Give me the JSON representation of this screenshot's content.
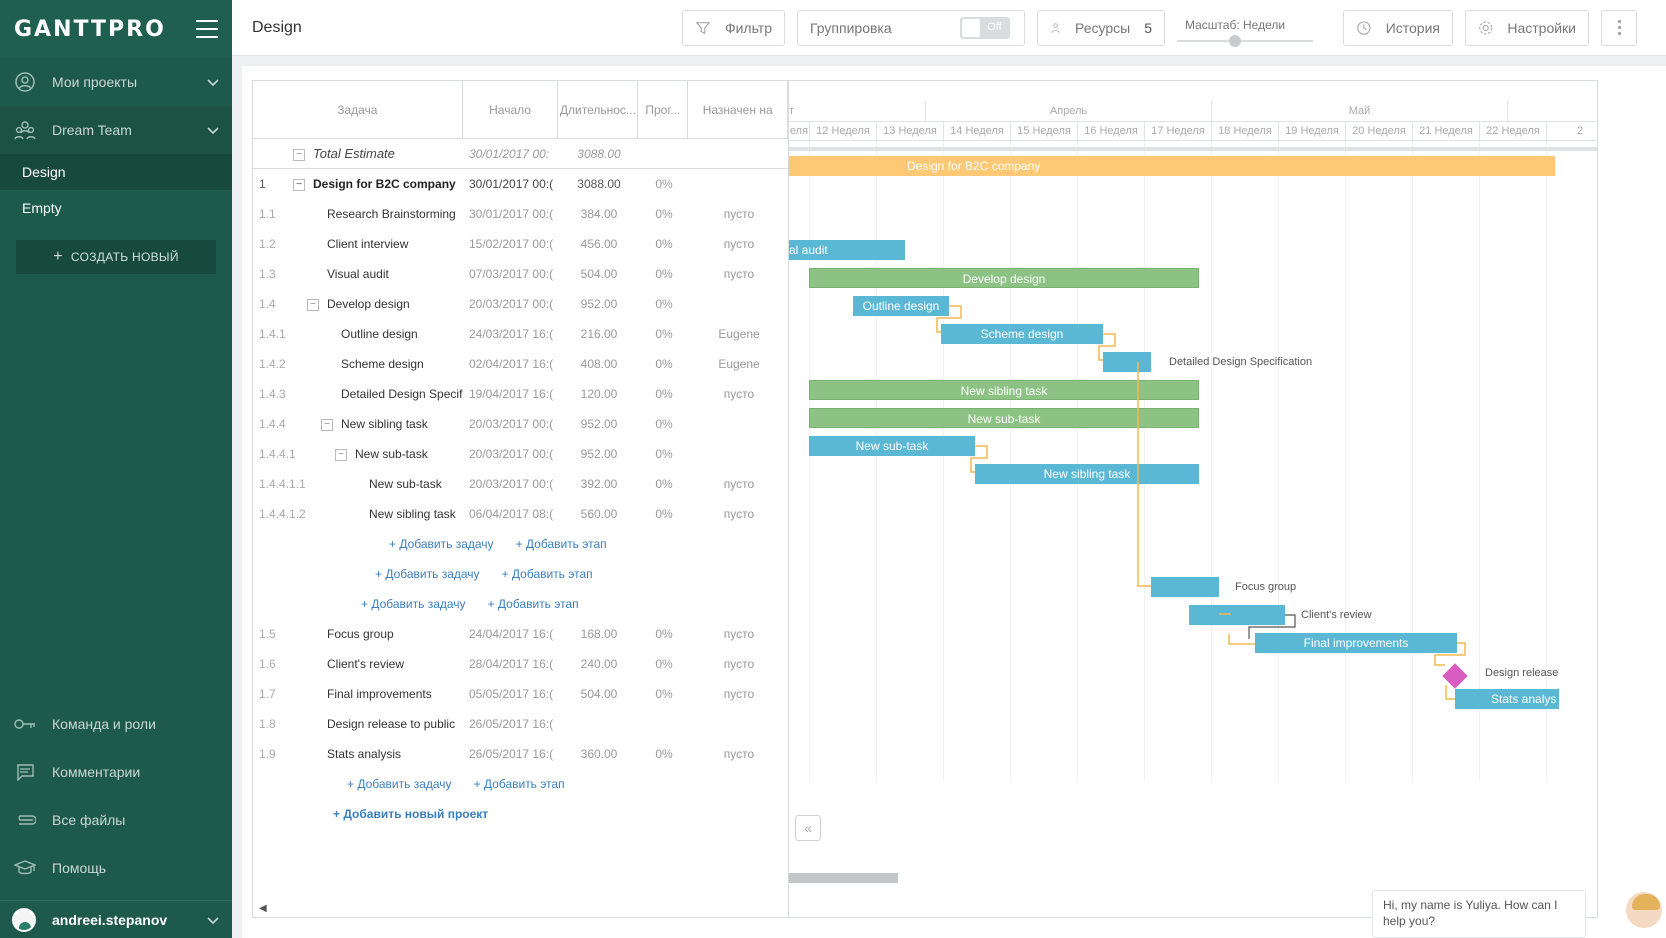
{
  "app": {
    "logo": "GANTTPRO",
    "page_title": "Design"
  },
  "sidebar": {
    "my_projects": "Мои проекты",
    "team": "Dream Team",
    "projects": [
      "Design",
      "Empty"
    ],
    "create_new": "СОЗДАТЬ НОВЫЙ",
    "bottom": [
      "Команда и роли",
      "Комментарии",
      "Все файлы",
      "Помощь"
    ],
    "user": "andreei.stepanov"
  },
  "toolbar": {
    "filter": "Фильтр",
    "grouping": "Группировка",
    "grouping_state": "Off",
    "resources": "Ресурсы",
    "resources_count": "5",
    "zoom_label": "Масштаб: Недели",
    "history": "История",
    "settings": "Настройки"
  },
  "grid": {
    "headers": [
      "Задача",
      "Начало",
      "Длительнос...",
      "Прог...",
      "Назначен на"
    ],
    "total": {
      "name": "Total Estimate",
      "start": "30/01/2017 00:",
      "duration": "3088.00"
    },
    "rows": [
      {
        "num": "1",
        "name": "Design for B2C company",
        "start": "30/01/2017 00:(",
        "duration": "3088.00",
        "progress": "0%",
        "assigned": "",
        "indent": 0,
        "collapse": true,
        "project": true
      },
      {
        "num": "1.1",
        "name": "Research Brainstorming",
        "start": "30/01/2017 00:(",
        "duration": "384.00",
        "progress": "0%",
        "assigned": "пусто",
        "indent": 1
      },
      {
        "num": "1.2",
        "name": "Client interview",
        "start": "15/02/2017 00:(",
        "duration": "456.00",
        "progress": "0%",
        "assigned": "пусто",
        "indent": 1
      },
      {
        "num": "1.3",
        "name": "Visual audit",
        "start": "07/03/2017 00:(",
        "duration": "504.00",
        "progress": "0%",
        "assigned": "пусто",
        "indent": 1
      },
      {
        "num": "1.4",
        "name": "Develop design",
        "start": "20/03/2017 00:(",
        "duration": "952.00",
        "progress": "0%",
        "assigned": "",
        "indent": 1,
        "collapse": true
      },
      {
        "num": "1.4.1",
        "name": "Outline design",
        "start": "24/03/2017 16:(",
        "duration": "216.00",
        "progress": "0%",
        "assigned": "Eugene",
        "indent": 2
      },
      {
        "num": "1.4.2",
        "name": "Scheme design",
        "start": "02/04/2017 16:(",
        "duration": "408.00",
        "progress": "0%",
        "assigned": "Eugene",
        "indent": 2
      },
      {
        "num": "1.4.3",
        "name": "Detailed Design Specification",
        "start": "19/04/2017 16:(",
        "duration": "120.00",
        "progress": "0%",
        "assigned": "пусто",
        "indent": 2
      },
      {
        "num": "1.4.4",
        "name": "New sibling task",
        "start": "20/03/2017 00:(",
        "duration": "952.00",
        "progress": "0%",
        "assigned": "",
        "indent": 2,
        "collapse": true
      },
      {
        "num": "1.4.4.1",
        "name": "New sub-task",
        "start": "20/03/2017 00:(",
        "duration": "952.00",
        "progress": "0%",
        "assigned": "",
        "indent": 3,
        "collapse": true
      },
      {
        "num": "1.4.4.1.1",
        "name": "New sub-task",
        "start": "20/03/2017 00:(",
        "duration": "392.00",
        "progress": "0%",
        "assigned": "пусто",
        "indent": 4
      },
      {
        "num": "1.4.4.1.2",
        "name": "New sibling task",
        "start": "06/04/2017 08:(",
        "duration": "560.00",
        "progress": "0%",
        "assigned": "пусто",
        "indent": 4
      }
    ],
    "rows_after": [
      {
        "num": "1.5",
        "name": "Focus group",
        "start": "24/04/2017 16:(",
        "duration": "168.00",
        "progress": "0%",
        "assigned": "пусто",
        "indent": 1
      },
      {
        "num": "1.6",
        "name": "Client's review",
        "start": "28/04/2017 16:(",
        "duration": "240.00",
        "progress": "0%",
        "assigned": "пусто",
        "indent": 1
      },
      {
        "num": "1.7",
        "name": "Final improvements",
        "start": "05/05/2017 16:(",
        "duration": "504.00",
        "progress": "0%",
        "assigned": "пусто",
        "indent": 1
      },
      {
        "num": "1.8",
        "name": "Design release to public",
        "start": "26/05/2017 16:(",
        "duration": "",
        "progress": "",
        "assigned": "",
        "indent": 1
      },
      {
        "num": "1.9",
        "name": "Stats analysis",
        "start": "26/05/2017 16:(",
        "duration": "360.00",
        "progress": "0%",
        "assigned": "пусто",
        "indent": 1
      }
    ],
    "add_task": "+ Добавить задачу",
    "add_stage": "+ Добавить этап",
    "add_project": "+ Добавить новый проект"
  },
  "gantt": {
    "months": [
      "т",
      "Апрель",
      "Май"
    ],
    "weeks": [
      "еля",
      "12 Неделя",
      "13 Неделя",
      "14 Неделя",
      "15 Неделя",
      "16 Неделя",
      "17 Неделя",
      "18 Неделя",
      "19 Неделя",
      "20 Неделя",
      "21 Неделя",
      "22 Неделя",
      "2"
    ],
    "bars": {
      "project": "Design for B2C company",
      "visual_audit": "al audit",
      "develop": "Develop design",
      "outline": "Outline design",
      "scheme": "Scheme design",
      "detailed": "Detailed Design Specification",
      "sibling": "New sibling task",
      "subtask": "New sub-task",
      "subtask2": "New sub-task",
      "sibling2": "New sibling task",
      "focus": "Focus group",
      "review": "Client's review",
      "final": "Final improvements",
      "release": "Design release",
      "stats": "Stats analys"
    },
    "colors": {
      "task": "#5bb8d4",
      "group": "#8cc283",
      "project": "#ffc874",
      "milestone": "#d75dc1",
      "link": "#f3b94f"
    }
  },
  "chat": {
    "message": "Hi, my name is Yuliya. How can I help you?"
  }
}
